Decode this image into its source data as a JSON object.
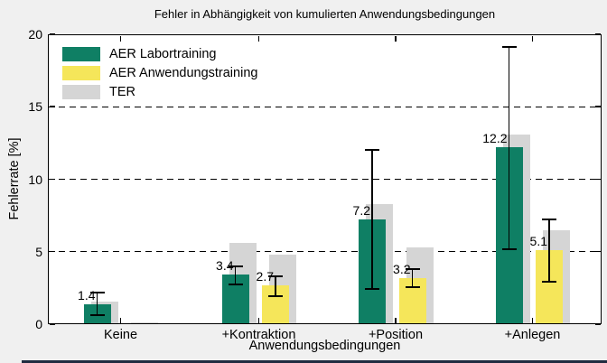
{
  "colors": {
    "green": "#0F7F64",
    "yellow": "#F5E65A",
    "gray": "#D5D5D5",
    "figure_bg": "#F0F0F0",
    "plot_bg": "#FFFFFF",
    "axis": "#000000"
  },
  "chart_data": {
    "type": "bar",
    "title": "Fehler in Abhängigkeit von kumulierten Anwendungsbedingungen",
    "xlabel": "Anwendungsbedingungen",
    "ylabel": "Fehlerrate [%]",
    "ylim": [
      0,
      20
    ],
    "yticks": [
      0,
      5,
      10,
      15,
      20
    ],
    "grid": "dashed horizontal lines at 5, 10, 15",
    "legend_position": "top-left inside plot, no border",
    "categories": [
      "Keine",
      "+Kontraktion",
      "+Position",
      "+Anlegen"
    ],
    "legend": [
      {
        "label": "AER Labortraining",
        "color_key": "green"
      },
      {
        "label": "AER Anwendungstraining",
        "color_key": "yellow"
      },
      {
        "label": "TER",
        "color_key": "gray"
      }
    ],
    "series": [
      {
        "name": "AER Labortraining",
        "color_key": "green",
        "values": [
          1.4,
          3.4,
          7.2,
          12.2
        ],
        "labels": [
          "1.4",
          "3.4",
          "7.2",
          "12.2"
        ],
        "err_low": [
          0.6,
          2.75,
          2.45,
          5.2
        ],
        "err_high": [
          2.2,
          4.0,
          12.0,
          19.1
        ]
      },
      {
        "name": "AER Anwendungstraining",
        "color_key": "yellow",
        "values": [
          0.06,
          2.7,
          3.2,
          5.1
        ],
        "labels": [
          "",
          "2.7",
          "3.2",
          "5.1"
        ],
        "err_low": [
          null,
          1.95,
          2.55,
          2.95
        ],
        "err_high": [
          null,
          3.3,
          3.8,
          7.2
        ]
      },
      {
        "name": "TER (hinter AER Labortraining)",
        "color_key": "gray",
        "values": [
          1.55,
          5.6,
          8.3,
          13.1
        ]
      },
      {
        "name": "TER (hinter AER Anwendungstraining)",
        "color_key": "gray",
        "values": [
          0.1,
          4.8,
          5.3,
          6.5
        ]
      }
    ]
  }
}
